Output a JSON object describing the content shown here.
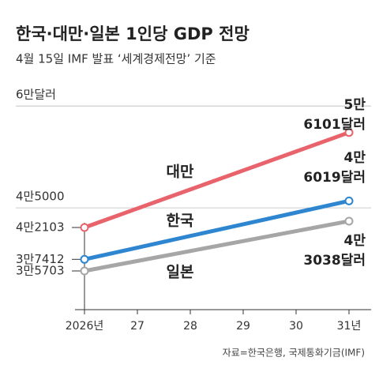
{
  "chart_data": {
    "type": "line",
    "title": "한국·대만·일본 1인당 GDP 전망",
    "subtitle": "4월 15일 IMF 발표 ‘세계경제전망’ 기준",
    "source": "자료=한국은행, 국제통화기금(IMF)",
    "categories": [
      "2026년",
      "27",
      "28",
      "29",
      "30",
      "31년"
    ],
    "series": [
      {
        "name": "대만",
        "color": "#e8636b",
        "label_color": "#e0454f",
        "values": [
          42103,
          44903,
          47702,
          50502,
          53301,
          56101
        ],
        "value_labels": [
          null,
          null,
          null,
          null,
          null,
          "5만 6101달러"
        ]
      },
      {
        "name": "한국",
        "color": "#2e86d0",
        "label_color": "#1d6fc4",
        "values": [
          37412,
          39133,
          40855,
          42576,
          44298,
          46019
        ],
        "value_labels": [
          null,
          null,
          null,
          null,
          null,
          "4만 6019달러"
        ]
      },
      {
        "name": "일본",
        "color": "#a6a6a6",
        "label_color": "#555555",
        "values": [
          35703,
          37170,
          38637,
          40104,
          41571,
          43038
        ],
        "value_labels": [
          null,
          null,
          null,
          null,
          null,
          "4만 3038달러"
        ]
      }
    ],
    "ylim": [
      30000,
      62000
    ],
    "yticks": [
      {
        "value": 35703,
        "label": "3만5703"
      },
      {
        "value": 37412,
        "label": "3만7412"
      },
      {
        "value": 42103,
        "label": "4만2103"
      },
      {
        "value": 45000,
        "label": "4만5000"
      },
      {
        "value": 60000,
        "label": "6만달러"
      }
    ]
  }
}
